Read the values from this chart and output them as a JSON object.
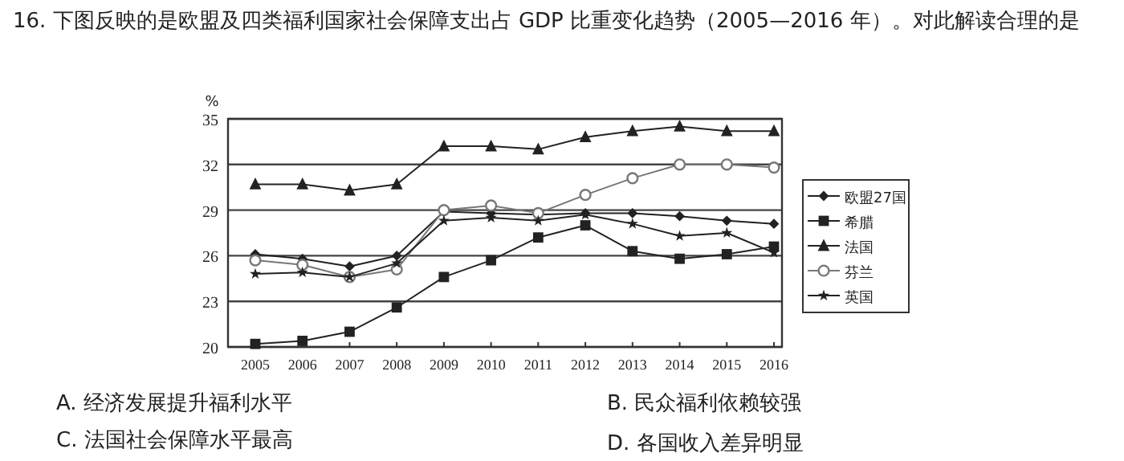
{
  "chart_data": {
    "type": "line",
    "title": "16. 下图反映的是欧盟及四类福利国家社会保障支出占 GDP 比重变化趋势（2005—2016 年）。对此解读合理的是",
    "ylabel": "%",
    "categories": [
      "2005",
      "2006",
      "2007",
      "2008",
      "2009",
      "2010",
      "2011",
      "2012",
      "2013",
      "2014",
      "2015",
      "2016"
    ],
    "ylim": [
      20,
      35
    ],
    "yticks": [
      20,
      23,
      26,
      29,
      32,
      35
    ],
    "grid": "y",
    "legend": "right",
    "series": [
      {
        "name": "欧盟27国",
        "color": "#222222",
        "marker": "diamond",
        "values": [
          26.1,
          25.8,
          25.3,
          26.0,
          28.9,
          28.8,
          28.7,
          28.8,
          28.8,
          28.6,
          28.3,
          28.1
        ]
      },
      {
        "name": "希腊",
        "color": "#222222",
        "marker": "square",
        "values": [
          20.2,
          20.4,
          21.0,
          22.6,
          24.6,
          25.7,
          27.2,
          28.0,
          26.3,
          25.8,
          26.1,
          26.6
        ]
      },
      {
        "name": "法国",
        "color": "#222222",
        "marker": "triangle",
        "values": [
          30.7,
          30.7,
          30.3,
          30.7,
          33.2,
          33.2,
          33.0,
          33.8,
          34.2,
          34.5,
          34.2,
          34.2
        ]
      },
      {
        "name": "芬兰",
        "color": "#777777",
        "marker": "circle",
        "values": [
          25.7,
          25.4,
          24.6,
          25.1,
          29.0,
          29.3,
          28.8,
          30.0,
          31.1,
          32.0,
          32.0,
          31.8
        ]
      },
      {
        "name": "英国",
        "color": "#222222",
        "marker": "star",
        "values": [
          24.8,
          24.9,
          24.6,
          25.5,
          28.3,
          28.5,
          28.3,
          28.7,
          28.1,
          27.3,
          27.5,
          26.2
        ]
      }
    ],
    "annotations": [
      "A. 经济发展提升福利水平",
      "B. 民众福利依赖较强",
      "C. 法国社会保障水平最高",
      "D. 各国收入差异明显"
    ]
  }
}
